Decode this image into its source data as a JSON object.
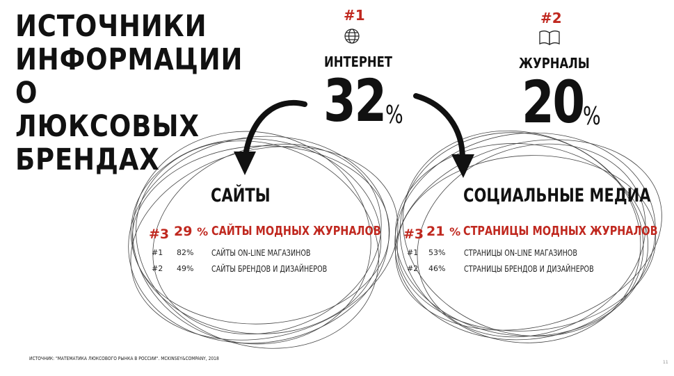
{
  "title": [
    "ИСТОЧНИКИ",
    "ИНФОРМАЦИИ",
    "О ЛЮКСОВЫХ",
    "БРЕНДАХ"
  ],
  "sources": [
    {
      "rank": "#1",
      "icon": "globe-icon",
      "label": "ИНТЕРНЕТ",
      "value": "32",
      "unit": "%"
    },
    {
      "rank": "#2",
      "icon": "book-icon",
      "label": "ЖУРНАЛЫ",
      "value": "20",
      "unit": "%"
    }
  ],
  "circles": [
    {
      "title": "САЙТЫ",
      "top": {
        "rank": "#3",
        "value": "29",
        "unit": "%",
        "label": "САЙТЫ МОДНЫХ ЖУРНАЛОВ"
      },
      "rows": [
        {
          "rank": "#1",
          "value": "82%",
          "label": "САЙТЫ ON-LINE МАГАЗИНОВ"
        },
        {
          "rank": "#2",
          "value": "49%",
          "label": "САЙТЫ БРЕНДОВ И ДИЗАЙНЕРОВ"
        }
      ]
    },
    {
      "title": "СОЦИАЛЬНЫЕ МЕДИА",
      "top": {
        "rank": "#3",
        "value": "21",
        "unit": "%",
        "label": "СТРАНИЦЫ МОДНЫХ ЖУРНАЛОВ"
      },
      "rows": [
        {
          "rank": "#1",
          "value": "53%",
          "label": "СТРАНИЦЫ ON-LINE МАГАЗИНОВ"
        },
        {
          "rank": "#2",
          "value": "46%",
          "label": "СТРАНИЦЫ БРЕНДОВ И ДИЗАЙНЕРОВ"
        }
      ]
    }
  ],
  "source": "ИСТОЧНИК: \"МАТЕМАТИКА ЛЮКСОВОГО РЫНКА В РОССИИ\". MCKINSEY&COMPANY, 2018",
  "page_number": "11",
  "colors": {
    "accent": "#c0281f",
    "text": "#111111"
  }
}
